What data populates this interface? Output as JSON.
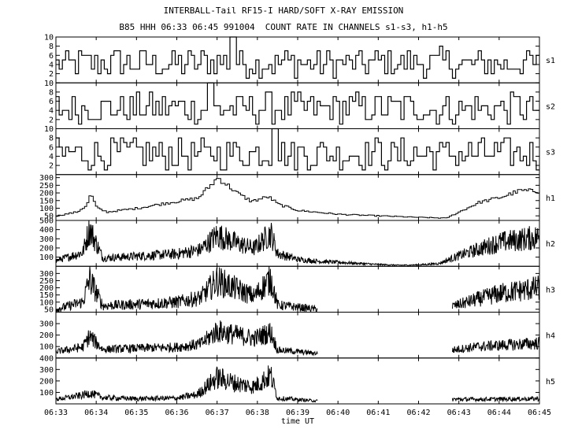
{
  "title": "INTERBALL-Tail RF15-I HARD/SOFT X-RAY EMISSION",
  "subtitle": "B85 HHH 06:33 06:45 991004  COUNT RATE IN CHANNELS s1-s3, h1-h5",
  "chart_data": {
    "type": "line",
    "xlabel": "time UT",
    "x_ticks": [
      "06:33",
      "06:34",
      "06:35",
      "06:36",
      "06:37",
      "06:38",
      "06:39",
      "06:40",
      "06:41",
      "06:42",
      "06:43",
      "06:44",
      "06:45"
    ],
    "xlim": [
      "06:33",
      "06:45"
    ],
    "grid": false,
    "panels": [
      {
        "name": "s1",
        "ylim": [
          0,
          10
        ],
        "y_ticks": [
          2,
          4,
          6,
          8,
          10
        ],
        "style": "step",
        "mean": 4.5,
        "gap": null,
        "features": [
          {
            "t": "06:37:20",
            "value": 10
          }
        ]
      },
      {
        "name": "s2",
        "ylim": [
          0,
          10
        ],
        "y_ticks": [
          2,
          4,
          6,
          8,
          10
        ],
        "style": "step",
        "mean": 4.8,
        "gap": null,
        "features": [
          {
            "t": "06:36:48",
            "value": 10
          }
        ]
      },
      {
        "name": "s3",
        "ylim": [
          0,
          10
        ],
        "y_ticks": [
          2,
          4,
          6,
          8,
          10
        ],
        "style": "step",
        "mean": 4.8,
        "gap": null,
        "features": [
          {
            "t": "06:38:25",
            "value": 10
          }
        ]
      },
      {
        "name": "h1",
        "ylim": [
          20,
          320
        ],
        "y_ticks": [
          50,
          100,
          150,
          200,
          250,
          300
        ],
        "style": "step",
        "gap": null,
        "profile": [
          [
            "06:33:00",
            50
          ],
          [
            "06:33:30",
            75
          ],
          [
            "06:33:45",
            120
          ],
          [
            "06:33:50",
            195
          ],
          [
            "06:34:00",
            100
          ],
          [
            "06:34:15",
            75
          ],
          [
            "06:35:00",
            100
          ],
          [
            "06:35:45",
            135
          ],
          [
            "06:36:30",
            165
          ],
          [
            "06:37:00",
            300
          ],
          [
            "06:37:30",
            195
          ],
          [
            "06:37:50",
            145
          ],
          [
            "06:38:15",
            175
          ],
          [
            "06:38:30",
            125
          ],
          [
            "06:39:00",
            85
          ],
          [
            "06:40:00",
            60
          ],
          [
            "06:41:00",
            50
          ],
          [
            "06:42:00",
            40
          ],
          [
            "06:42:40",
            35
          ],
          [
            "06:43:30",
            140
          ],
          [
            "06:44:00",
            170
          ],
          [
            "06:44:30",
            215
          ],
          [
            "06:45:00",
            210
          ]
        ]
      },
      {
        "name": "h2",
        "ylim": [
          0,
          500
        ],
        "y_ticks": [
          100,
          200,
          300,
          400,
          500
        ],
        "style": "dense",
        "gap": null,
        "profile": [
          [
            "06:33:00",
            60
          ],
          [
            "06:33:40",
            150
          ],
          [
            "06:33:50",
            410
          ],
          [
            "06:34:10",
            90
          ],
          [
            "06:35:00",
            110
          ],
          [
            "06:36:00",
            135
          ],
          [
            "06:36:35",
            180
          ],
          [
            "06:37:00",
            340
          ],
          [
            "06:37:30",
            250
          ],
          [
            "06:37:55",
            195
          ],
          [
            "06:38:20",
            360
          ],
          [
            "06:38:30",
            140
          ],
          [
            "06:39:00",
            75
          ],
          [
            "06:39:30",
            55
          ],
          [
            "06:41:00",
            20
          ],
          [
            "06:41:30",
            12
          ],
          [
            "06:42:00",
            15
          ],
          [
            "06:42:30",
            30
          ],
          [
            "06:43:00",
            115
          ],
          [
            "06:44:00",
            260
          ],
          [
            "06:45:00",
            320
          ]
        ]
      },
      {
        "name": "h3",
        "ylim": [
          30,
          350
        ],
        "y_ticks": [
          50,
          100,
          150,
          200,
          250,
          300
        ],
        "style": "dense",
        "gap": [
          "06:39:30",
          "06:42:50"
        ],
        "profile": [
          [
            "06:33:00",
            50
          ],
          [
            "06:33:40",
            100
          ],
          [
            "06:33:50",
            260
          ],
          [
            "06:34:10",
            75
          ],
          [
            "06:35:00",
            85
          ],
          [
            "06:36:00",
            100
          ],
          [
            "06:36:35",
            130
          ],
          [
            "06:37:00",
            250
          ],
          [
            "06:37:30",
            190
          ],
          [
            "06:37:55",
            140
          ],
          [
            "06:38:20",
            265
          ],
          [
            "06:38:30",
            80
          ],
          [
            "06:39:30",
            50
          ],
          [
            "06:42:50",
            70
          ],
          [
            "06:43:20",
            110
          ],
          [
            "06:44:00",
            160
          ],
          [
            "06:45:00",
            200
          ]
        ]
      },
      {
        "name": "h4",
        "ylim": [
          0,
          400
        ],
        "y_ticks": [
          100,
          200,
          300
        ],
        "style": "dense",
        "gap": [
          "06:39:30",
          "06:42:50"
        ],
        "profile": [
          [
            "06:33:00",
            55
          ],
          [
            "06:33:40",
            95
          ],
          [
            "06:33:50",
            190
          ],
          [
            "06:34:10",
            75
          ],
          [
            "06:35:00",
            85
          ],
          [
            "06:36:00",
            95
          ],
          [
            "06:36:35",
            120
          ],
          [
            "06:37:00",
            235
          ],
          [
            "06:37:30",
            200
          ],
          [
            "06:37:55",
            170
          ],
          [
            "06:38:20",
            225
          ],
          [
            "06:38:30",
            70
          ],
          [
            "06:39:30",
            40
          ],
          [
            "06:42:50",
            70
          ],
          [
            "06:43:30",
            100
          ],
          [
            "06:45:00",
            130
          ]
        ]
      },
      {
        "name": "h5",
        "ylim": [
          0,
          400
        ],
        "y_ticks": [
          100,
          200,
          300,
          400
        ],
        "style": "dense",
        "gap": [
          "06:39:30",
          "06:42:50"
        ],
        "profile": [
          [
            "06:33:00",
            40
          ],
          [
            "06:33:40",
            75
          ],
          [
            "06:33:50",
            95
          ],
          [
            "06:34:10",
            55
          ],
          [
            "06:35:00",
            45
          ],
          [
            "06:36:00",
            50
          ],
          [
            "06:36:30",
            80
          ],
          [
            "06:37:00",
            230
          ],
          [
            "06:37:30",
            175
          ],
          [
            "06:37:55",
            150
          ],
          [
            "06:38:20",
            250
          ],
          [
            "06:38:30",
            50
          ],
          [
            "06:39:30",
            25
          ],
          [
            "06:42:50",
            40
          ],
          [
            "06:43:30",
            40
          ],
          [
            "06:45:00",
            45
          ]
        ]
      }
    ]
  }
}
